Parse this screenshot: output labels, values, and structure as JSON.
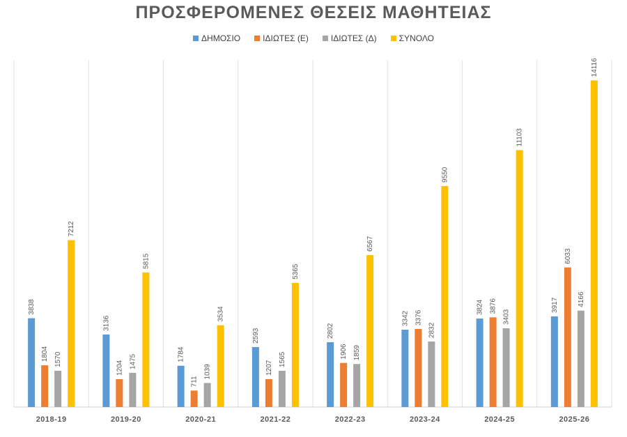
{
  "chart_data": {
    "type": "bar",
    "title": "ΠΡΟΣΦΕΡΟΜΕΝΕΣ ΘΕΣΕΙΣ ΜΑΘΗΤΕΙΑΣ",
    "xlabel": "",
    "ylabel": "",
    "ylim": [
      0,
      15000
    ],
    "grid": "vertical category separators",
    "legend": "top-center",
    "categories": [
      "2018-19",
      "2019-20",
      "2020-21",
      "2021-22",
      "2022-23",
      "2023-24",
      "2024-25",
      "2025-26"
    ],
    "series": [
      {
        "name": "ΔΗΜΟΣΙΟ",
        "color": "#5b9bd5",
        "values": [
          3838,
          3136,
          1784,
          2593,
          2802,
          3342,
          3824,
          3917
        ]
      },
      {
        "name": "ΙΔΙΩΤΕΣ (Ε)",
        "color": "#ed7d31",
        "values": [
          1804,
          1204,
          711,
          1207,
          1906,
          3376,
          3876,
          6033
        ]
      },
      {
        "name": "ΙΔΙΩΤΕΣ (Δ)",
        "color": "#a5a5a5",
        "values": [
          1570,
          1475,
          1039,
          1565,
          1859,
          2832,
          3403,
          4166
        ]
      },
      {
        "name": "ΣΥΝΟΛΟ",
        "color": "#ffc000",
        "values": [
          7212,
          5815,
          3534,
          5365,
          6567,
          9550,
          11103,
          14116
        ]
      }
    ]
  }
}
